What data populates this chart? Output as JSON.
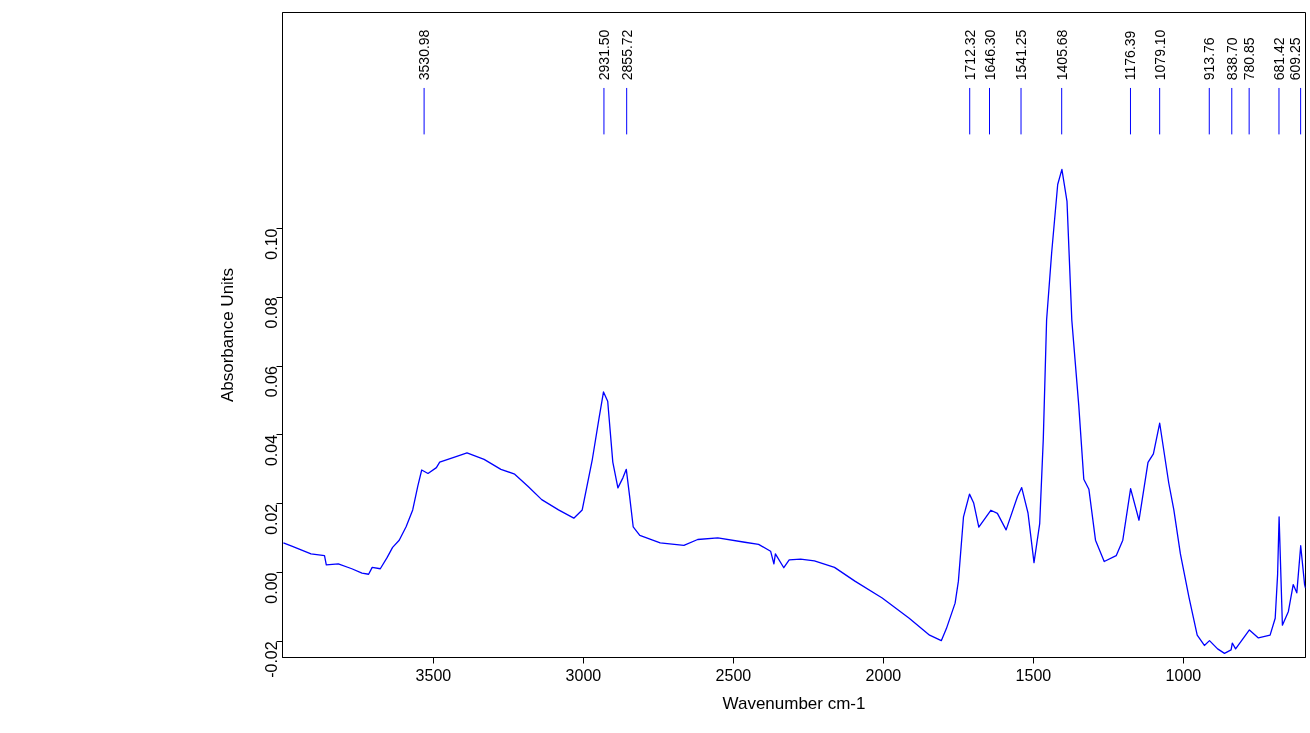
{
  "chart_data": {
    "type": "line",
    "xlabel": "Wavenumber cm-1",
    "ylabel": "Absorbance Units",
    "xlim": [
      4003,
      593
    ],
    "ylim": [
      -0.0247,
      0.1628
    ],
    "xticks": [
      3500,
      3000,
      2500,
      2000,
      1500,
      1000
    ],
    "yticks": [
      {
        "value": -0.02,
        "label": "-0.02"
      },
      {
        "value": 0,
        "label": "0.00"
      },
      {
        "value": 0.02,
        "label": "0.02"
      },
      {
        "value": 0.04,
        "label": "0.04"
      },
      {
        "value": 0.06,
        "label": "0.06"
      },
      {
        "value": 0.08,
        "label": "0.08"
      },
      {
        "value": 0.1,
        "label": "0.10"
      }
    ],
    "grid": false,
    "marker": "none",
    "line_style": "solid",
    "series": [
      {
        "color": "#0000ff",
        "x": [
          4000,
          3970,
          3908,
          3863,
          3857,
          3817,
          3772,
          3738,
          3716,
          3704,
          3677,
          3654,
          3636,
          3614,
          3591,
          3569,
          3552,
          3539,
          3518,
          3490,
          3479,
          3422,
          3388,
          3331,
          3275,
          3229,
          3185,
          3139,
          3083,
          3032,
          3004,
          2970,
          2948,
          2933,
          2919,
          2902,
          2885,
          2868,
          2857,
          2846,
          2834,
          2812,
          2744,
          2665,
          2619,
          2552,
          2462,
          2416,
          2376,
          2365,
          2360,
          2332,
          2314,
          2276,
          2230,
          2163,
          2095,
          2004,
          1914,
          1846,
          1807,
          1790,
          1761,
          1750,
          1733,
          1713,
          1699,
          1682,
          1642,
          1620,
          1591,
          1553,
          1539,
          1518,
          1498,
          1479,
          1467,
          1456,
          1439,
          1419,
          1405,
          1388,
          1372,
          1349,
          1332,
          1315,
          1293,
          1264,
          1224,
          1202,
          1176,
          1148,
          1118,
          1100,
          1079,
          1049,
          1032,
          1010,
          981,
          954,
          930,
          913,
          886,
          863,
          841,
          837,
          826,
          780,
          750,
          711,
          694,
          686,
          681,
          670,
          650,
          634,
          622,
          609,
          596,
          593
        ],
        "values": [
          0.0086,
          0.0076,
          0.0054,
          0.0049,
          0.0022,
          0.0025,
          0.0011,
          -0.0002,
          -0.0005,
          0.0015,
          0.0011,
          0.0044,
          0.0073,
          0.0094,
          0.0133,
          0.0182,
          0.0251,
          0.0298,
          0.0288,
          0.0305,
          0.0321,
          0.0338,
          0.0348,
          0.0329,
          0.03,
          0.0286,
          0.0251,
          0.0212,
          0.0182,
          0.0158,
          0.0182,
          0.033,
          0.0448,
          0.0525,
          0.0498,
          0.0321,
          0.0246,
          0.0276,
          0.03,
          0.0222,
          0.0133,
          0.0108,
          0.0086,
          0.0079,
          0.0096,
          0.0101,
          0.0088,
          0.0082,
          0.0062,
          0.0025,
          0.0054,
          0.0014,
          0.0037,
          0.0039,
          0.0034,
          0.0015,
          -0.0025,
          -0.0074,
          -0.0133,
          -0.0182,
          -0.0198,
          -0.0163,
          -0.0089,
          -0.0025,
          0.0162,
          0.0228,
          0.0202,
          0.0132,
          0.0181,
          0.0172,
          0.0124,
          0.0221,
          0.0247,
          0.0173,
          0.0029,
          0.0142,
          0.0389,
          0.0734,
          0.0931,
          0.1128,
          0.1172,
          0.1079,
          0.0734,
          0.0488,
          0.0271,
          0.0242,
          0.0094,
          0.0032,
          0.0049,
          0.0094,
          0.0244,
          0.0152,
          0.032,
          0.0345,
          0.0434,
          0.0261,
          0.0183,
          0.0054,
          -0.0074,
          -0.0182,
          -0.0212,
          -0.0198,
          -0.0222,
          -0.0235,
          -0.0225,
          -0.0205,
          -0.0222,
          -0.0167,
          -0.019,
          -0.0182,
          -0.0133,
          -0.0006,
          0.0162,
          -0.0153,
          -0.0113,
          -0.0035,
          -0.0059,
          0.0078,
          -0.0035,
          -0.0045
        ]
      }
    ],
    "ref_lines": [
      {
        "axis": "x",
        "value": 3530.98,
        "label": "3530.98",
        "color": "#0000ff"
      },
      {
        "axis": "x",
        "value": 2931.5,
        "label": "2931.50",
        "color": "#0000ff"
      },
      {
        "axis": "x",
        "value": 2855.72,
        "label": "2855.72",
        "color": "#0000ff"
      },
      {
        "axis": "x",
        "value": 1712.32,
        "label": "1712.32",
        "color": "#0000ff"
      },
      {
        "axis": "x",
        "value": 1646.3,
        "label": "1646.30",
        "color": "#0000ff"
      },
      {
        "axis": "x",
        "value": 1541.25,
        "label": "1541.25",
        "color": "#0000ff"
      },
      {
        "axis": "x",
        "value": 1405.68,
        "label": "1405.68",
        "color": "#0000ff"
      },
      {
        "axis": "x",
        "value": 1176.39,
        "label": "1176.39",
        "color": "#0000ff"
      },
      {
        "axis": "x",
        "value": 1079.1,
        "label": "1079.10",
        "color": "#0000ff"
      },
      {
        "axis": "x",
        "value": 913.76,
        "label": "913.76",
        "color": "#0000ff"
      },
      {
        "axis": "x",
        "value": 838.7,
        "label": "838.70",
        "color": "#0000ff"
      },
      {
        "axis": "x",
        "value": 780.85,
        "label": "780.85",
        "color": "#0000ff"
      },
      {
        "axis": "x",
        "value": 681.42,
        "label": "681.42",
        "color": "#0000ff"
      },
      {
        "axis": "x",
        "value": 609.25,
        "label": "609.25",
        "color": "#0000ff"
      }
    ]
  }
}
